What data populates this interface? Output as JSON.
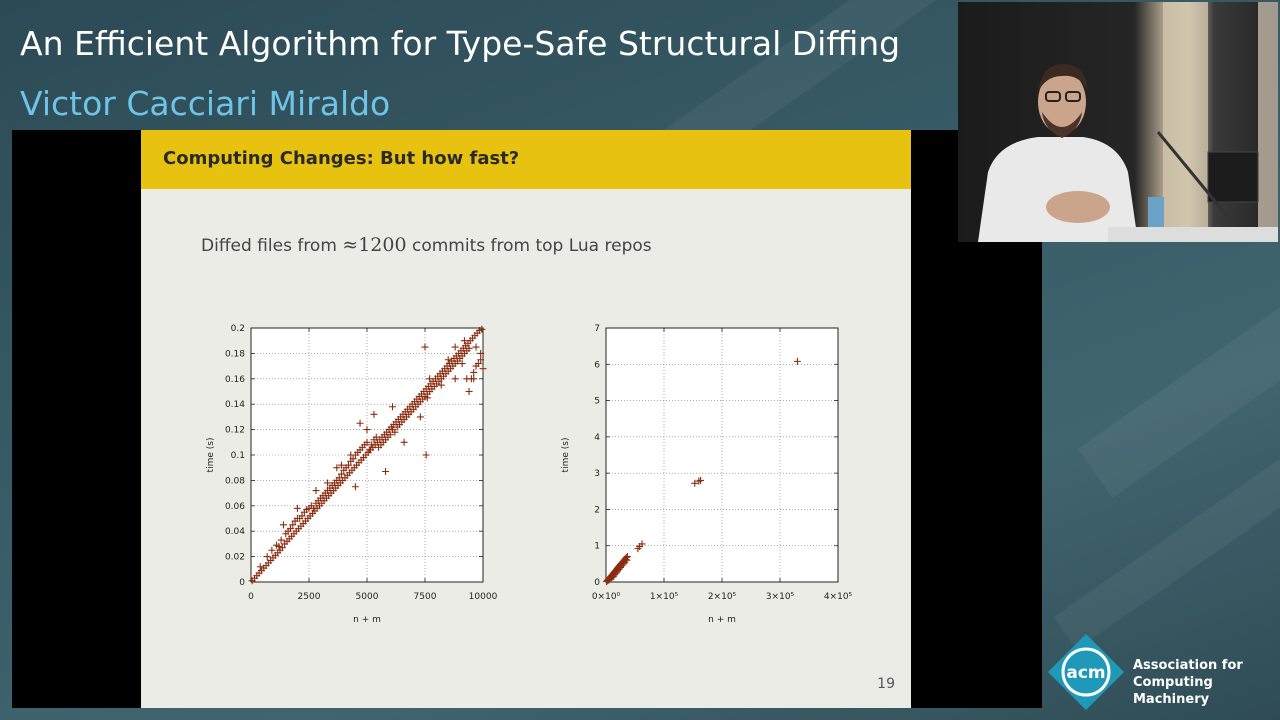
{
  "header": {
    "talk_title": "An Efficient Algorithm for Type-Safe Structural Diffing",
    "speaker": "Victor Cacciari Miraldo"
  },
  "slide": {
    "title": "Computing Changes: But how fast?",
    "text_before": "Diffed files from ",
    "approx_symbol": "≈",
    "commit_count": "1200",
    "text_after": " commits from top Lua repos",
    "page_number": "19"
  },
  "branding": {
    "logo_text": "acm",
    "org_line1": "Association for",
    "org_line2": "Computing Machinery",
    "accent": "#1e9ab8"
  },
  "colors": {
    "marker": "#8b2c10",
    "slide_header": "#e8c210"
  },
  "chart_data": [
    {
      "type": "scatter",
      "marker": "+",
      "xlabel": "n + m",
      "ylabel": "time (s)",
      "xlim": [
        0,
        10000
      ],
      "ylim": [
        0,
        0.2
      ],
      "xticks": [
        "0",
        "2500",
        "5000",
        "7500",
        "10000"
      ],
      "yticks": [
        "0",
        "0.02",
        "0.04",
        "0.06",
        "0.08",
        "0.1",
        "0.12",
        "0.14",
        "0.16",
        "0.18",
        "0.2"
      ],
      "grid": true,
      "points": [
        [
          50,
          0.001
        ],
        [
          150,
          0.003
        ],
        [
          250,
          0.005
        ],
        [
          350,
          0.007
        ],
        [
          450,
          0.009
        ],
        [
          550,
          0.011
        ],
        [
          650,
          0.013
        ],
        [
          750,
          0.015
        ],
        [
          850,
          0.017
        ],
        [
          950,
          0.019
        ],
        [
          1050,
          0.021
        ],
        [
          1150,
          0.023
        ],
        [
          1250,
          0.025
        ],
        [
          1350,
          0.027
        ],
        [
          1450,
          0.03
        ],
        [
          1550,
          0.032
        ],
        [
          1650,
          0.034
        ],
        [
          1750,
          0.036
        ],
        [
          1850,
          0.038
        ],
        [
          1950,
          0.04
        ],
        [
          2050,
          0.042
        ],
        [
          2150,
          0.044
        ],
        [
          2250,
          0.046
        ],
        [
          2350,
          0.048
        ],
        [
          2450,
          0.05
        ],
        [
          2550,
          0.052
        ],
        [
          2650,
          0.054
        ],
        [
          2750,
          0.056
        ],
        [
          2850,
          0.058
        ],
        [
          2950,
          0.06
        ],
        [
          3050,
          0.062
        ],
        [
          3150,
          0.064
        ],
        [
          3250,
          0.066
        ],
        [
          3350,
          0.068
        ],
        [
          3450,
          0.07
        ],
        [
          3550,
          0.072
        ],
        [
          3650,
          0.074
        ],
        [
          3750,
          0.076
        ],
        [
          3850,
          0.078
        ],
        [
          3950,
          0.08
        ],
        [
          4050,
          0.082
        ],
        [
          4150,
          0.084
        ],
        [
          4250,
          0.086
        ],
        [
          4350,
          0.088
        ],
        [
          4450,
          0.09
        ],
        [
          4550,
          0.092
        ],
        [
          4650,
          0.094
        ],
        [
          4750,
          0.096
        ],
        [
          4850,
          0.098
        ],
        [
          4950,
          0.1
        ],
        [
          5050,
          0.102
        ],
        [
          5150,
          0.104
        ],
        [
          5250,
          0.106
        ],
        [
          5350,
          0.108
        ],
        [
          5450,
          0.11
        ],
        [
          5550,
          0.112
        ],
        [
          5650,
          0.114
        ],
        [
          5750,
          0.116
        ],
        [
          5850,
          0.118
        ],
        [
          5950,
          0.12
        ],
        [
          6050,
          0.122
        ],
        [
          6150,
          0.124
        ],
        [
          6250,
          0.126
        ],
        [
          6350,
          0.128
        ],
        [
          6450,
          0.13
        ],
        [
          6550,
          0.132
        ],
        [
          6650,
          0.134
        ],
        [
          6750,
          0.136
        ],
        [
          6850,
          0.138
        ],
        [
          6950,
          0.14
        ],
        [
          7050,
          0.142
        ],
        [
          7150,
          0.144
        ],
        [
          7250,
          0.146
        ],
        [
          7350,
          0.148
        ],
        [
          7450,
          0.15
        ],
        [
          7550,
          0.152
        ],
        [
          7650,
          0.154
        ],
        [
          7750,
          0.156
        ],
        [
          7850,
          0.158
        ],
        [
          7950,
          0.16
        ],
        [
          8050,
          0.162
        ],
        [
          8150,
          0.164
        ],
        [
          8250,
          0.166
        ],
        [
          8350,
          0.168
        ],
        [
          8450,
          0.17
        ],
        [
          8550,
          0.172
        ],
        [
          8650,
          0.174
        ],
        [
          8750,
          0.176
        ],
        [
          8850,
          0.178
        ],
        [
          8950,
          0.18
        ],
        [
          9050,
          0.182
        ],
        [
          9150,
          0.184
        ],
        [
          9250,
          0.186
        ],
        [
          9350,
          0.188
        ],
        [
          9450,
          0.19
        ],
        [
          9550,
          0.192
        ],
        [
          9650,
          0.194
        ],
        [
          9750,
          0.196
        ],
        [
          9850,
          0.198
        ],
        [
          9950,
          0.199
        ],
        [
          400,
          0.012
        ],
        [
          700,
          0.02
        ],
        [
          900,
          0.025
        ],
        [
          1100,
          0.029
        ],
        [
          1200,
          0.028
        ],
        [
          1300,
          0.033
        ],
        [
          1500,
          0.038
        ],
        [
          1600,
          0.04
        ],
        [
          1700,
          0.042
        ],
        [
          1800,
          0.045
        ],
        [
          1900,
          0.048
        ],
        [
          2000,
          0.05
        ],
        [
          2100,
          0.05
        ],
        [
          2200,
          0.052
        ],
        [
          2300,
          0.055
        ],
        [
          2400,
          0.057
        ],
        [
          2500,
          0.058
        ],
        [
          2600,
          0.06
        ],
        [
          2700,
          0.058
        ],
        [
          2800,
          0.062
        ],
        [
          2900,
          0.064
        ],
        [
          3000,
          0.066
        ],
        [
          3100,
          0.068
        ],
        [
          3200,
          0.07
        ],
        [
          3300,
          0.072
        ],
        [
          3400,
          0.074
        ],
        [
          3500,
          0.076
        ],
        [
          3600,
          0.078
        ],
        [
          3700,
          0.08
        ],
        [
          3800,
          0.082
        ],
        [
          3900,
          0.085
        ],
        [
          4000,
          0.088
        ],
        [
          4100,
          0.09
        ],
        [
          4200,
          0.092
        ],
        [
          4300,
          0.095
        ],
        [
          4400,
          0.097
        ],
        [
          4500,
          0.1
        ],
        [
          4600,
          0.102
        ],
        [
          4700,
          0.104
        ],
        [
          4800,
          0.106
        ],
        [
          4900,
          0.108
        ],
        [
          5000,
          0.11
        ],
        [
          5100,
          0.104
        ],
        [
          5200,
          0.108
        ],
        [
          5300,
          0.112
        ],
        [
          5400,
          0.114
        ],
        [
          5500,
          0.106
        ],
        [
          5600,
          0.108
        ],
        [
          5700,
          0.11
        ],
        [
          5800,
          0.112
        ],
        [
          5900,
          0.114
        ],
        [
          6000,
          0.116
        ],
        [
          6100,
          0.12
        ],
        [
          6200,
          0.118
        ],
        [
          6300,
          0.122
        ],
        [
          6400,
          0.124
        ],
        [
          6500,
          0.126
        ],
        [
          6600,
          0.128
        ],
        [
          6700,
          0.13
        ],
        [
          6800,
          0.132
        ],
        [
          6900,
          0.134
        ],
        [
          7000,
          0.136
        ],
        [
          7100,
          0.138
        ],
        [
          7200,
          0.14
        ],
        [
          7300,
          0.142
        ],
        [
          7400,
          0.144
        ],
        [
          7500,
          0.146
        ],
        [
          7600,
          0.148
        ],
        [
          7700,
          0.15
        ],
        [
          7800,
          0.152
        ],
        [
          7900,
          0.154
        ],
        [
          8000,
          0.156
        ],
        [
          8100,
          0.158
        ],
        [
          8200,
          0.16
        ],
        [
          8300,
          0.162
        ],
        [
          8400,
          0.164
        ],
        [
          8500,
          0.166
        ],
        [
          8600,
          0.168
        ],
        [
          8700,
          0.17
        ],
        [
          8800,
          0.172
        ],
        [
          8900,
          0.174
        ],
        [
          9000,
          0.176
        ],
        [
          9100,
          0.178
        ],
        [
          9200,
          0.18
        ],
        [
          9300,
          0.182
        ],
        [
          9400,
          0.184
        ],
        [
          9500,
          0.16
        ],
        [
          9600,
          0.165
        ],
        [
          9700,
          0.17
        ],
        [
          9800,
          0.172
        ],
        [
          9900,
          0.175
        ],
        [
          10000,
          0.168
        ],
        [
          1400,
          0.045
        ],
        [
          2000,
          0.058
        ],
        [
          2800,
          0.072
        ],
        [
          3300,
          0.078
        ],
        [
          3700,
          0.09
        ],
        [
          4300,
          0.1
        ],
        [
          5000,
          0.12
        ],
        [
          6100,
          0.138
        ],
        [
          7600,
          0.145
        ],
        [
          7550,
          0.1
        ],
        [
          8800,
          0.16
        ],
        [
          9100,
          0.172
        ],
        [
          9300,
          0.16
        ],
        [
          9700,
          0.185
        ],
        [
          9900,
          0.18
        ],
        [
          7500,
          0.185
        ],
        [
          8200,
          0.155
        ],
        [
          8500,
          0.175
        ],
        [
          9200,
          0.19
        ],
        [
          9400,
          0.15
        ],
        [
          5300,
          0.132
        ],
        [
          4700,
          0.125
        ],
        [
          3900,
          0.092
        ],
        [
          6600,
          0.11
        ],
        [
          4500,
          0.075
        ],
        [
          5800,
          0.087
        ],
        [
          7300,
          0.13
        ],
        [
          7700,
          0.16
        ],
        [
          8800,
          0.185
        ],
        [
          9600,
          0.16
        ]
      ]
    },
    {
      "type": "scatter",
      "marker": "+",
      "xlabel": "n + m",
      "ylabel": "time (s)",
      "xlim": [
        0,
        400000
      ],
      "ylim": [
        0,
        7
      ],
      "xticks": [
        "0×10⁰",
        "1×10⁵",
        "2×10⁵",
        "3×10⁵",
        "4×10⁵"
      ],
      "yticks": [
        "0",
        "1",
        "2",
        "3",
        "4",
        "5",
        "6",
        "7"
      ],
      "grid": true,
      "points": [
        [
          1000,
          0.01
        ],
        [
          2000,
          0.03
        ],
        [
          3000,
          0.05
        ],
        [
          4000,
          0.07
        ],
        [
          5000,
          0.09
        ],
        [
          6000,
          0.1
        ],
        [
          7000,
          0.12
        ],
        [
          8000,
          0.14
        ],
        [
          9000,
          0.16
        ],
        [
          10000,
          0.18
        ],
        [
          11000,
          0.2
        ],
        [
          12000,
          0.22
        ],
        [
          13000,
          0.24
        ],
        [
          14000,
          0.26
        ],
        [
          15000,
          0.28
        ],
        [
          16000,
          0.3
        ],
        [
          17000,
          0.32
        ],
        [
          18000,
          0.34
        ],
        [
          19000,
          0.36
        ],
        [
          20000,
          0.38
        ],
        [
          21000,
          0.4
        ],
        [
          22000,
          0.42
        ],
        [
          23000,
          0.44
        ],
        [
          24000,
          0.46
        ],
        [
          25000,
          0.48
        ],
        [
          26000,
          0.5
        ],
        [
          27000,
          0.52
        ],
        [
          29000,
          0.56
        ],
        [
          31000,
          0.6
        ],
        [
          33000,
          0.64
        ],
        [
          35000,
          0.68
        ],
        [
          5000,
          0.05
        ],
        [
          7500,
          0.08
        ],
        [
          10000,
          0.12
        ],
        [
          12500,
          0.15
        ],
        [
          15000,
          0.2
        ],
        [
          17500,
          0.25
        ],
        [
          20000,
          0.3
        ],
        [
          22500,
          0.35
        ],
        [
          25000,
          0.4
        ],
        [
          27500,
          0.45
        ],
        [
          30000,
          0.5
        ],
        [
          32500,
          0.55
        ],
        [
          34000,
          0.62
        ],
        [
          36000,
          0.6
        ],
        [
          37000,
          0.7
        ],
        [
          55000,
          0.92
        ],
        [
          58000,
          0.98
        ],
        [
          62000,
          1.05
        ],
        [
          153000,
          2.72
        ],
        [
          160000,
          2.78
        ],
        [
          163000,
          2.8
        ],
        [
          330000,
          6.08
        ]
      ]
    }
  ]
}
